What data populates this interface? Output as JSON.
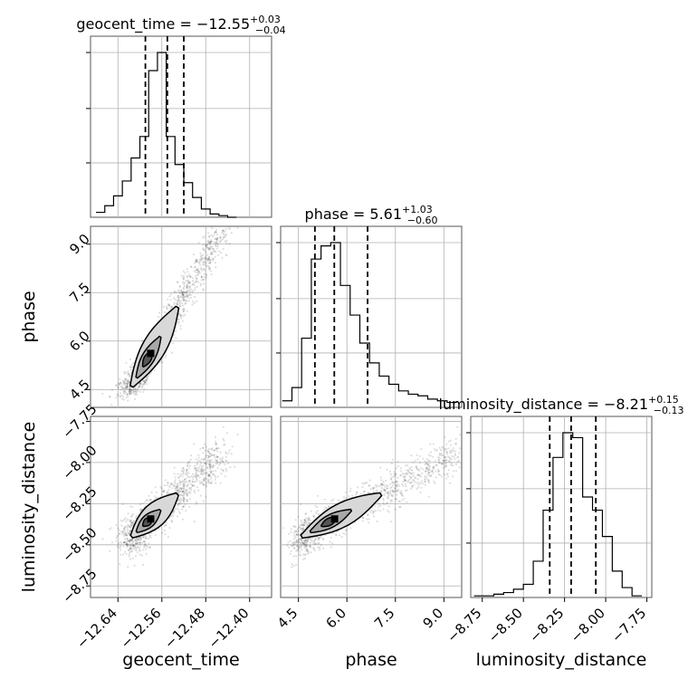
{
  "chart_data": {
    "type": "corner",
    "parameters": [
      "geocent_time",
      "phase",
      "luminosity_distance"
    ],
    "titles": [
      {
        "param": "geocent_time",
        "prefix": "geocent_time = ",
        "median": "−12.55",
        "plus": "+0.03",
        "minus": "−0.04"
      },
      {
        "param": "phase",
        "prefix": "phase = ",
        "median": "5.61",
        "plus": "+1.03",
        "minus": "−0.60"
      },
      {
        "param": "luminosity_distance",
        "prefix": "luminosity_distance = ",
        "median": "−8.21",
        "plus": "+0.15",
        "minus": "−0.13"
      }
    ],
    "axis_labels": {
      "x": [
        "geocent_time",
        "phase",
        "luminosity_distance"
      ],
      "y": [
        "phase",
        "luminosity_distance"
      ]
    },
    "ranges": {
      "geocent_time": [
        -12.69,
        -12.36
      ],
      "phase": [
        3.95,
        9.55
      ],
      "luminosity_distance": [
        -8.82,
        -7.72
      ]
    },
    "ticks": {
      "geocent_time": [
        {
          "v": -12.64,
          "label": "−12.64"
        },
        {
          "v": -12.56,
          "label": "−12.56"
        },
        {
          "v": -12.48,
          "label": "−12.48"
        },
        {
          "v": -12.4,
          "label": "−12.40"
        }
      ],
      "phase": [
        {
          "v": 4.5,
          "label": "4.5"
        },
        {
          "v": 6.0,
          "label": "6.0"
        },
        {
          "v": 7.5,
          "label": "7.5"
        },
        {
          "v": 9.0,
          "label": "9.0"
        }
      ],
      "luminosity_distance": [
        {
          "v": -8.75,
          "label": "−8.75"
        },
        {
          "v": -8.5,
          "label": "−8.50"
        },
        {
          "v": -8.25,
          "label": "−8.25"
        },
        {
          "v": -8.0,
          "label": "−8.00"
        },
        {
          "v": -7.75,
          "label": "−7.75"
        }
      ]
    },
    "histograms": {
      "geocent_time": {
        "edges": [
          -12.68,
          -12.664,
          -12.648,
          -12.632,
          -12.616,
          -12.6,
          -12.584,
          -12.568,
          -12.552,
          -12.536,
          -12.52,
          -12.504,
          -12.488,
          -12.472,
          -12.456,
          -12.44,
          -12.424
        ],
        "counts": [
          0.03,
          0.07,
          0.13,
          0.22,
          0.36,
          0.49,
          0.89,
          1.0,
          0.49,
          0.32,
          0.21,
          0.12,
          0.05,
          0.02,
          0.01,
          0.0
        ],
        "quantiles": [
          -12.59,
          -12.55,
          -12.52
        ]
      },
      "phase": {
        "edges": [
          4.0,
          4.3,
          4.6,
          4.9,
          5.2,
          5.5,
          5.8,
          6.1,
          6.4,
          6.7,
          7.0,
          7.3,
          7.6,
          7.9,
          8.2,
          8.5,
          8.8,
          9.1,
          9.4
        ],
        "counts": [
          0.04,
          0.12,
          0.42,
          0.9,
          0.98,
          1.0,
          0.74,
          0.56,
          0.39,
          0.27,
          0.19,
          0.14,
          0.1,
          0.08,
          0.07,
          0.05,
          0.04,
          0.03
        ],
        "quantiles": [
          5.01,
          5.61,
          6.64
        ]
      },
      "luminosity_distance": {
        "edges": [
          -8.8,
          -8.74,
          -8.68,
          -8.62,
          -8.56,
          -8.5,
          -8.44,
          -8.38,
          -8.32,
          -8.26,
          -8.2,
          -8.14,
          -8.08,
          -8.02,
          -7.96,
          -7.9,
          -7.84,
          -7.78
        ],
        "counts": [
          0.01,
          0.01,
          0.02,
          0.03,
          0.05,
          0.08,
          0.22,
          0.53,
          0.85,
          1.0,
          0.97,
          0.61,
          0.53,
          0.37,
          0.16,
          0.06,
          0.01
        ],
        "quantiles": [
          -8.34,
          -8.21,
          -8.06
        ]
      }
    },
    "grid": true
  }
}
